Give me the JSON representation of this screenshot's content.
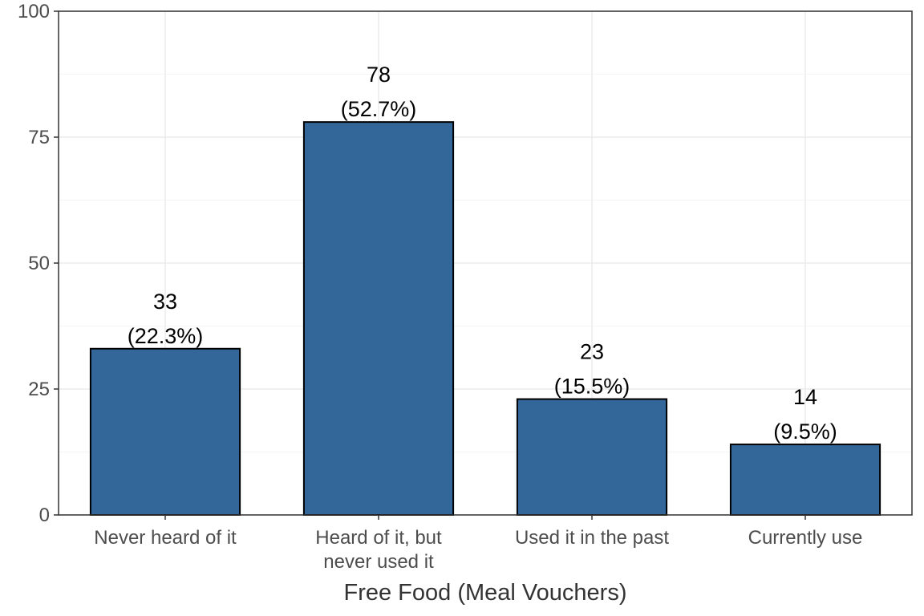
{
  "chart_data": {
    "type": "bar",
    "title": "",
    "xlabel": "Free Food (Meal Vouchers)",
    "ylabel": "",
    "categories": [
      [
        "Never heard of it"
      ],
      [
        "Heard of it, but",
        "never used it"
      ],
      [
        "Used it in the past"
      ],
      [
        "Currently use"
      ]
    ],
    "values": [
      33,
      78,
      23,
      14
    ],
    "value_labels": [
      "33",
      "78",
      "23",
      "14"
    ],
    "percent_labels": [
      "(22.3%)",
      "(52.7%)",
      "(15.5%)",
      "(9.5%)"
    ],
    "ylim": [
      0,
      100
    ],
    "y_ticks": [
      0,
      25,
      50,
      75,
      100
    ],
    "grid": true,
    "legend": "none",
    "colors": {
      "bar_fill": "#336699",
      "bar_stroke": "#000000",
      "grid_major": "#ebebeb",
      "grid_minor": "#f4f4f4",
      "panel_border": "#333333"
    }
  }
}
